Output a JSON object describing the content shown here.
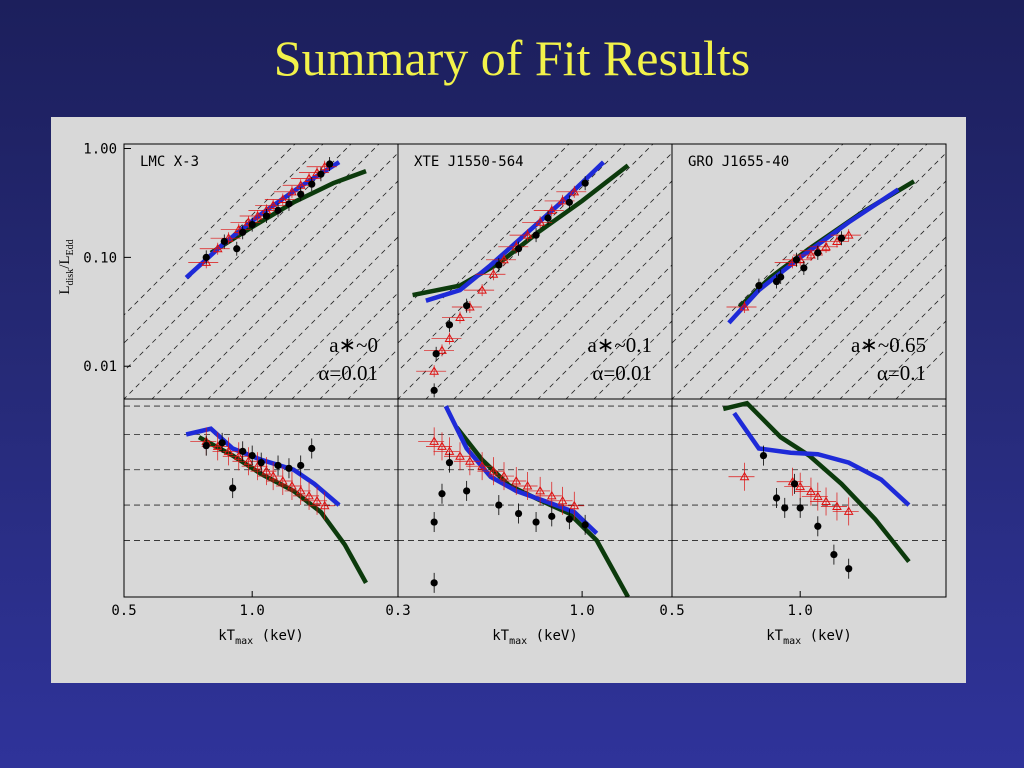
{
  "slide": {
    "title": "Summary of Fit Results",
    "background_color": "#262a78",
    "title_color": "#f2f24a"
  },
  "figure": {
    "background_color": "#d8d8d8",
    "colors": {
      "data_points": "#000000",
      "triangles": "#dd1111",
      "model_blue": "#1e2ad8",
      "model_green": "#0c3a0c"
    },
    "y_axis_label": {
      "main": "L",
      "sub1": "disk",
      "slash": "/L",
      "sub2": "Edd"
    },
    "x_axis_label": {
      "main": "kT",
      "sub": "max",
      "suffix": " (keV)"
    },
    "y_tick_labels": [
      "1.00",
      "0.10",
      "0.01"
    ]
  },
  "chart_data": [
    {
      "type": "scatter",
      "panel": "LMC X-3",
      "label": "LMC X-3",
      "annotation": {
        "spin": "a∗~0",
        "alpha": "α=0.01"
      },
      "x_ticks": [
        "0.5",
        "1.0"
      ],
      "x_scale": "log",
      "y_scale": "log",
      "x_range": [
        0.5,
        2.2
      ],
      "y_range": [
        0.005,
        1.1
      ],
      "points": [
        [
          0.78,
          0.1
        ],
        [
          0.86,
          0.14
        ],
        [
          0.92,
          0.12
        ],
        [
          0.95,
          0.17
        ],
        [
          1.0,
          0.2
        ],
        [
          1.08,
          0.24
        ],
        [
          1.15,
          0.27
        ],
        [
          1.22,
          0.31
        ],
        [
          1.3,
          0.38
        ],
        [
          1.38,
          0.47
        ],
        [
          1.45,
          0.58
        ],
        [
          1.52,
          0.72
        ]
      ],
      "triangles": [
        [
          0.78,
          0.09
        ],
        [
          0.83,
          0.12
        ],
        [
          0.88,
          0.15
        ],
        [
          0.93,
          0.18
        ],
        [
          0.98,
          0.21
        ],
        [
          1.03,
          0.24
        ],
        [
          1.08,
          0.27
        ],
        [
          1.12,
          0.3
        ],
        [
          1.18,
          0.34
        ],
        [
          1.24,
          0.4
        ],
        [
          1.3,
          0.46
        ],
        [
          1.36,
          0.53
        ],
        [
          1.42,
          0.6
        ],
        [
          1.48,
          0.68
        ]
      ],
      "model_blue": [
        [
          0.7,
          0.065
        ],
        [
          0.85,
          0.13
        ],
        [
          1.05,
          0.25
        ],
        [
          1.3,
          0.45
        ],
        [
          1.6,
          0.75
        ]
      ],
      "model_green": [
        [
          0.8,
          0.11
        ],
        [
          1.0,
          0.19
        ],
        [
          1.25,
          0.32
        ],
        [
          1.55,
          0.48
        ],
        [
          1.85,
          0.62
        ]
      ],
      "residual_blue": [
        [
          0.7,
          0.8
        ],
        [
          0.8,
          0.84
        ],
        [
          0.9,
          0.7
        ],
        [
          1.05,
          0.62
        ],
        [
          1.25,
          0.55
        ],
        [
          1.4,
          0.45
        ],
        [
          1.6,
          0.3
        ]
      ],
      "residual_green": [
        [
          0.75,
          0.78
        ],
        [
          0.9,
          0.65
        ],
        [
          1.05,
          0.52
        ],
        [
          1.25,
          0.4
        ],
        [
          1.45,
          0.25
        ],
        [
          1.65,
          0.02
        ],
        [
          1.85,
          -0.25
        ]
      ],
      "residual_points": [
        [
          0.78,
          0.72
        ],
        [
          0.85,
          0.74
        ],
        [
          0.9,
          0.42
        ],
        [
          0.95,
          0.68
        ],
        [
          1.0,
          0.65
        ],
        [
          1.05,
          0.6
        ],
        [
          1.15,
          0.58
        ],
        [
          1.22,
          0.56
        ],
        [
          1.3,
          0.58
        ],
        [
          1.38,
          0.7
        ]
      ]
    },
    {
      "type": "scatter",
      "panel": "XTE J1550-564",
      "label": "XTE J1550-564",
      "annotation": {
        "spin": "a∗~0.1",
        "alpha": "α=0.01"
      },
      "x_ticks": [
        "0.3",
        "1.0"
      ],
      "x_scale": "log",
      "y_scale": "log",
      "x_range": [
        0.3,
        1.8
      ],
      "y_range": [
        0.005,
        1.1
      ],
      "points": [
        [
          0.38,
          0.006
        ],
        [
          0.385,
          0.013
        ],
        [
          0.42,
          0.024
        ],
        [
          0.47,
          0.036
        ],
        [
          0.58,
          0.085
        ],
        [
          0.66,
          0.12
        ],
        [
          0.74,
          0.16
        ],
        [
          0.8,
          0.23
        ],
        [
          0.92,
          0.32
        ],
        [
          1.02,
          0.48
        ]
      ],
      "triangles": [
        [
          0.38,
          0.009
        ],
        [
          0.4,
          0.014
        ],
        [
          0.42,
          0.018
        ],
        [
          0.45,
          0.028
        ],
        [
          0.48,
          0.035
        ],
        [
          0.52,
          0.05
        ],
        [
          0.56,
          0.07
        ],
        [
          0.6,
          0.095
        ],
        [
          0.65,
          0.125
        ],
        [
          0.7,
          0.16
        ],
        [
          0.76,
          0.21
        ],
        [
          0.82,
          0.27
        ],
        [
          0.88,
          0.33
        ],
        [
          0.95,
          0.4
        ]
      ],
      "model_blue": [
        [
          0.36,
          0.04
        ],
        [
          0.45,
          0.05
        ],
        [
          0.55,
          0.085
        ],
        [
          0.7,
          0.17
        ],
        [
          0.9,
          0.35
        ],
        [
          1.15,
          0.75
        ]
      ],
      "model_green": [
        [
          0.33,
          0.045
        ],
        [
          0.45,
          0.055
        ],
        [
          0.58,
          0.088
        ],
        [
          0.75,
          0.17
        ],
        [
          1.0,
          0.33
        ],
        [
          1.35,
          0.7
        ]
      ],
      "residual_blue": [
        [
          0.41,
          1.0
        ],
        [
          0.47,
          0.7
        ],
        [
          0.55,
          0.5
        ],
        [
          0.65,
          0.4
        ],
        [
          0.8,
          0.32
        ],
        [
          0.95,
          0.25
        ],
        [
          1.1,
          0.1
        ]
      ],
      "residual_green": [
        [
          0.44,
          0.85
        ],
        [
          0.52,
          0.62
        ],
        [
          0.62,
          0.44
        ],
        [
          0.75,
          0.34
        ],
        [
          0.92,
          0.24
        ],
        [
          1.1,
          0.05
        ],
        [
          1.35,
          -0.35
        ]
      ],
      "residual_points": [
        [
          0.38,
          -0.25
        ],
        [
          0.38,
          0.18
        ],
        [
          0.4,
          0.38
        ],
        [
          0.42,
          0.6
        ],
        [
          0.47,
          0.4
        ],
        [
          0.58,
          0.3
        ],
        [
          0.66,
          0.24
        ],
        [
          0.74,
          0.18
        ],
        [
          0.82,
          0.22
        ],
        [
          0.92,
          0.2
        ],
        [
          1.02,
          0.16
        ]
      ]
    },
    {
      "type": "scatter",
      "panel": "GRO J1655-40",
      "label": "GRO J1655-40",
      "annotation": {
        "spin": "a∗~0.65",
        "alpha": "α=0.1"
      },
      "x_ticks": [
        "0.5",
        "1.0"
      ],
      "x_scale": "log",
      "y_scale": "log",
      "x_range": [
        0.5,
        2.2
      ],
      "y_range": [
        0.005,
        1.1
      ],
      "points": [
        [
          0.8,
          0.055
        ],
        [
          0.88,
          0.06
        ],
        [
          0.9,
          0.066
        ],
        [
          0.98,
          0.095
        ],
        [
          1.02,
          0.08
        ],
        [
          1.1,
          0.11
        ],
        [
          1.25,
          0.15
        ]
      ],
      "triangles": [
        [
          0.74,
          0.035
        ],
        [
          0.96,
          0.09
        ],
        [
          1.0,
          0.095
        ],
        [
          1.06,
          0.105
        ],
        [
          1.1,
          0.115
        ],
        [
          1.15,
          0.125
        ],
        [
          1.22,
          0.14
        ],
        [
          1.3,
          0.16
        ]
      ],
      "model_blue": [
        [
          0.68,
          0.025
        ],
        [
          0.8,
          0.05
        ],
        [
          1.0,
          0.1
        ],
        [
          1.3,
          0.21
        ],
        [
          1.7,
          0.42
        ]
      ],
      "model_green": [
        [
          0.72,
          0.035
        ],
        [
          0.85,
          0.065
        ],
        [
          1.05,
          0.12
        ],
        [
          1.4,
          0.26
        ],
        [
          1.85,
          0.5
        ]
      ],
      "residual_blue": [
        [
          0.7,
          0.95
        ],
        [
          0.8,
          0.7
        ],
        [
          0.95,
          0.67
        ],
        [
          1.1,
          0.66
        ],
        [
          1.3,
          0.6
        ],
        [
          1.55,
          0.48
        ],
        [
          1.8,
          0.3
        ]
      ],
      "residual_green": [
        [
          0.66,
          0.98
        ],
        [
          0.75,
          1.02
        ],
        [
          0.9,
          0.78
        ],
        [
          1.05,
          0.65
        ],
        [
          1.25,
          0.45
        ],
        [
          1.5,
          0.2
        ],
        [
          1.8,
          -0.1
        ]
      ],
      "residual_points": [
        [
          0.82,
          0.65
        ],
        [
          0.88,
          0.35
        ],
        [
          0.92,
          0.28
        ],
        [
          0.97,
          0.45
        ],
        [
          1.0,
          0.28
        ],
        [
          1.1,
          0.15
        ],
        [
          1.2,
          -0.05
        ],
        [
          1.3,
          -0.15
        ]
      ]
    }
  ]
}
